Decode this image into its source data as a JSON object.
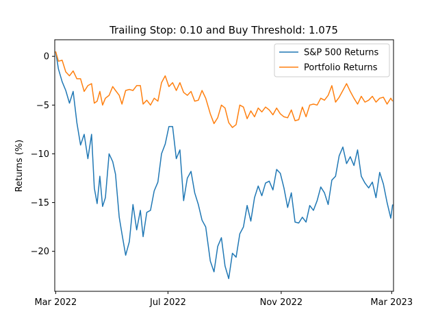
{
  "chart_data": {
    "type": "line",
    "title": "Trailing Stop: 0.10 and Buy Threshold: 1.075",
    "xlabel": "",
    "ylabel": "Returns (%)",
    "x_ticks": [
      "Mar 2022",
      "Jul 2022",
      "Nov 2022",
      "Mar 2023"
    ],
    "x_range": [
      "2022-02-28",
      "2023-03-03"
    ],
    "y_ticks": [
      0,
      -5,
      -10,
      -15,
      -20
    ],
    "ylim": [
      -24.1,
      1.7
    ],
    "grid": false,
    "legend_position": "top-right",
    "colors": {
      "sp500": "#1f77b4",
      "portfolio": "#ff7f0e"
    },
    "series": [
      {
        "name": "S&P 500 Returns",
        "key": "sp500",
        "x": [
          "2022-03-01",
          "2022-03-04",
          "2022-03-08",
          "2022-03-12",
          "2022-03-16",
          "2022-03-20",
          "2022-03-24",
          "2022-03-28",
          "2022-04-01",
          "2022-04-05",
          "2022-04-09",
          "2022-04-12",
          "2022-04-15",
          "2022-04-18",
          "2022-04-21",
          "2022-04-24",
          "2022-04-28",
          "2022-05-02",
          "2022-05-05",
          "2022-05-09",
          "2022-05-12",
          "2022-05-16",
          "2022-05-20",
          "2022-05-24",
          "2022-05-28",
          "2022-06-01",
          "2022-06-04",
          "2022-06-08",
          "2022-06-12",
          "2022-06-16",
          "2022-06-20",
          "2022-06-24",
          "2022-06-28",
          "2022-07-02",
          "2022-07-06",
          "2022-07-10",
          "2022-07-14",
          "2022-07-18",
          "2022-07-22",
          "2022-07-26",
          "2022-07-30",
          "2022-08-03",
          "2022-08-07",
          "2022-08-11",
          "2022-08-16",
          "2022-08-20",
          "2022-08-24",
          "2022-08-28",
          "2022-09-01",
          "2022-09-05",
          "2022-09-09",
          "2022-09-13",
          "2022-09-17",
          "2022-09-21",
          "2022-09-25",
          "2022-09-29",
          "2022-10-03",
          "2022-10-07",
          "2022-10-11",
          "2022-10-15",
          "2022-10-19",
          "2022-10-23",
          "2022-10-27",
          "2022-10-31",
          "2022-11-04",
          "2022-11-08",
          "2022-11-12",
          "2022-11-16",
          "2022-11-20",
          "2022-11-24",
          "2022-11-28",
          "2022-12-02",
          "2022-12-06",
          "2022-12-10",
          "2022-12-14",
          "2022-12-18",
          "2022-12-22",
          "2022-12-26",
          "2022-12-30",
          "2023-01-03",
          "2023-01-07",
          "2023-01-11",
          "2023-01-15",
          "2023-01-19",
          "2023-01-23",
          "2023-01-27",
          "2023-01-31",
          "2023-02-04",
          "2023-02-08",
          "2023-02-12",
          "2023-02-16",
          "2023-02-20",
          "2023-02-24",
          "2023-02-28",
          "2023-03-02"
        ],
        "y": [
          0.5,
          -1.3,
          -2.6,
          -3.5,
          -4.8,
          -3.6,
          -6.8,
          -9.1,
          -8.0,
          -10.5,
          -8.0,
          -13.5,
          -15.1,
          -12.3,
          -15.4,
          -14.5,
          -10.0,
          -10.8,
          -12.1,
          -16.5,
          -18.2,
          -20.4,
          -19.0,
          -15.2,
          -17.8,
          -15.8,
          -18.5,
          -16.0,
          -15.8,
          -13.8,
          -12.9,
          -10.0,
          -9.0,
          -7.2,
          -7.2,
          -10.5,
          -9.6,
          -14.8,
          -12.5,
          -11.8,
          -14.0,
          -15.2,
          -16.8,
          -17.5,
          -21.0,
          -22.1,
          -19.5,
          -18.6,
          -21.5,
          -22.8,
          -20.2,
          -20.6,
          -18.2,
          -17.5,
          -15.3,
          -16.9,
          -14.5,
          -13.3,
          -14.3,
          -13.0,
          -12.8,
          -13.7,
          -11.6,
          -12.0,
          -13.5,
          -15.5,
          -14.0,
          -17.0,
          -17.1,
          -16.5,
          -17.0,
          -15.3,
          -15.8,
          -14.8,
          -13.4,
          -14.0,
          -15.2,
          -12.7,
          -12.3,
          -10.2,
          -9.3,
          -11.0,
          -10.3,
          -11.2,
          -9.6,
          -12.3,
          -13.0,
          -13.5,
          -12.9,
          -14.5,
          -11.9,
          -13.1,
          -15.0,
          -16.6,
          -15.2
        ]
      },
      {
        "name": "Portfolio Returns",
        "key": "portfolio",
        "x": [
          "2022-03-01",
          "2022-03-04",
          "2022-03-08",
          "2022-03-12",
          "2022-03-16",
          "2022-03-20",
          "2022-03-24",
          "2022-03-28",
          "2022-04-01",
          "2022-04-05",
          "2022-04-09",
          "2022-04-12",
          "2022-04-15",
          "2022-04-18",
          "2022-04-21",
          "2022-04-24",
          "2022-04-28",
          "2022-05-02",
          "2022-05-05",
          "2022-05-09",
          "2022-05-12",
          "2022-05-16",
          "2022-05-20",
          "2022-05-24",
          "2022-05-28",
          "2022-06-01",
          "2022-06-04",
          "2022-06-08",
          "2022-06-12",
          "2022-06-16",
          "2022-06-20",
          "2022-06-24",
          "2022-06-28",
          "2022-07-02",
          "2022-07-06",
          "2022-07-10",
          "2022-07-14",
          "2022-07-18",
          "2022-07-22",
          "2022-07-26",
          "2022-07-30",
          "2022-08-03",
          "2022-08-07",
          "2022-08-11",
          "2022-08-16",
          "2022-08-20",
          "2022-08-24",
          "2022-08-28",
          "2022-09-01",
          "2022-09-05",
          "2022-09-09",
          "2022-09-13",
          "2022-09-17",
          "2022-09-21",
          "2022-09-25",
          "2022-09-29",
          "2022-10-03",
          "2022-10-07",
          "2022-10-11",
          "2022-10-15",
          "2022-10-19",
          "2022-10-23",
          "2022-10-27",
          "2022-10-31",
          "2022-11-04",
          "2022-11-08",
          "2022-11-12",
          "2022-11-16",
          "2022-11-20",
          "2022-11-24",
          "2022-11-28",
          "2022-12-02",
          "2022-12-06",
          "2022-12-10",
          "2022-12-14",
          "2022-12-18",
          "2022-12-22",
          "2022-12-26",
          "2022-12-30",
          "2023-01-03",
          "2023-01-07",
          "2023-01-11",
          "2023-01-15",
          "2023-01-19",
          "2023-01-23",
          "2023-01-27",
          "2023-01-31",
          "2023-02-04",
          "2023-02-08",
          "2023-02-12",
          "2023-02-16",
          "2023-02-20",
          "2023-02-24",
          "2023-02-28",
          "2023-03-02"
        ],
        "y": [
          0.5,
          -0.5,
          -0.4,
          -1.6,
          -2.0,
          -1.5,
          -2.3,
          -2.3,
          -3.6,
          -3.0,
          -2.8,
          -4.8,
          -4.6,
          -3.6,
          -5.0,
          -4.3,
          -4.0,
          -3.1,
          -3.5,
          -4.0,
          -4.9,
          -3.5,
          -3.4,
          -3.5,
          -3.0,
          -3.0,
          -4.9,
          -4.5,
          -5.0,
          -4.3,
          -4.6,
          -2.7,
          -2.0,
          -3.1,
          -2.7,
          -3.5,
          -2.7,
          -3.7,
          -4.0,
          -3.6,
          -4.6,
          -4.5,
          -3.5,
          -4.3,
          -5.9,
          -6.9,
          -6.3,
          -5.0,
          -5.3,
          -6.8,
          -7.3,
          -7.0,
          -5.0,
          -5.2,
          -6.4,
          -5.6,
          -6.2,
          -5.3,
          -5.7,
          -5.2,
          -5.5,
          -6.0,
          -5.3,
          -5.9,
          -6.2,
          -6.3,
          -5.5,
          -6.6,
          -6.5,
          -5.2,
          -6.2,
          -5.0,
          -4.9,
          -5.0,
          -4.3,
          -4.5,
          -4.0,
          -3.0,
          -4.7,
          -4.2,
          -3.5,
          -2.8,
          -3.6,
          -4.3,
          -4.9,
          -4.1,
          -4.7,
          -4.5,
          -4.1,
          -4.7,
          -4.3,
          -4.2,
          -4.9,
          -4.3,
          -4.6
        ]
      }
    ]
  }
}
